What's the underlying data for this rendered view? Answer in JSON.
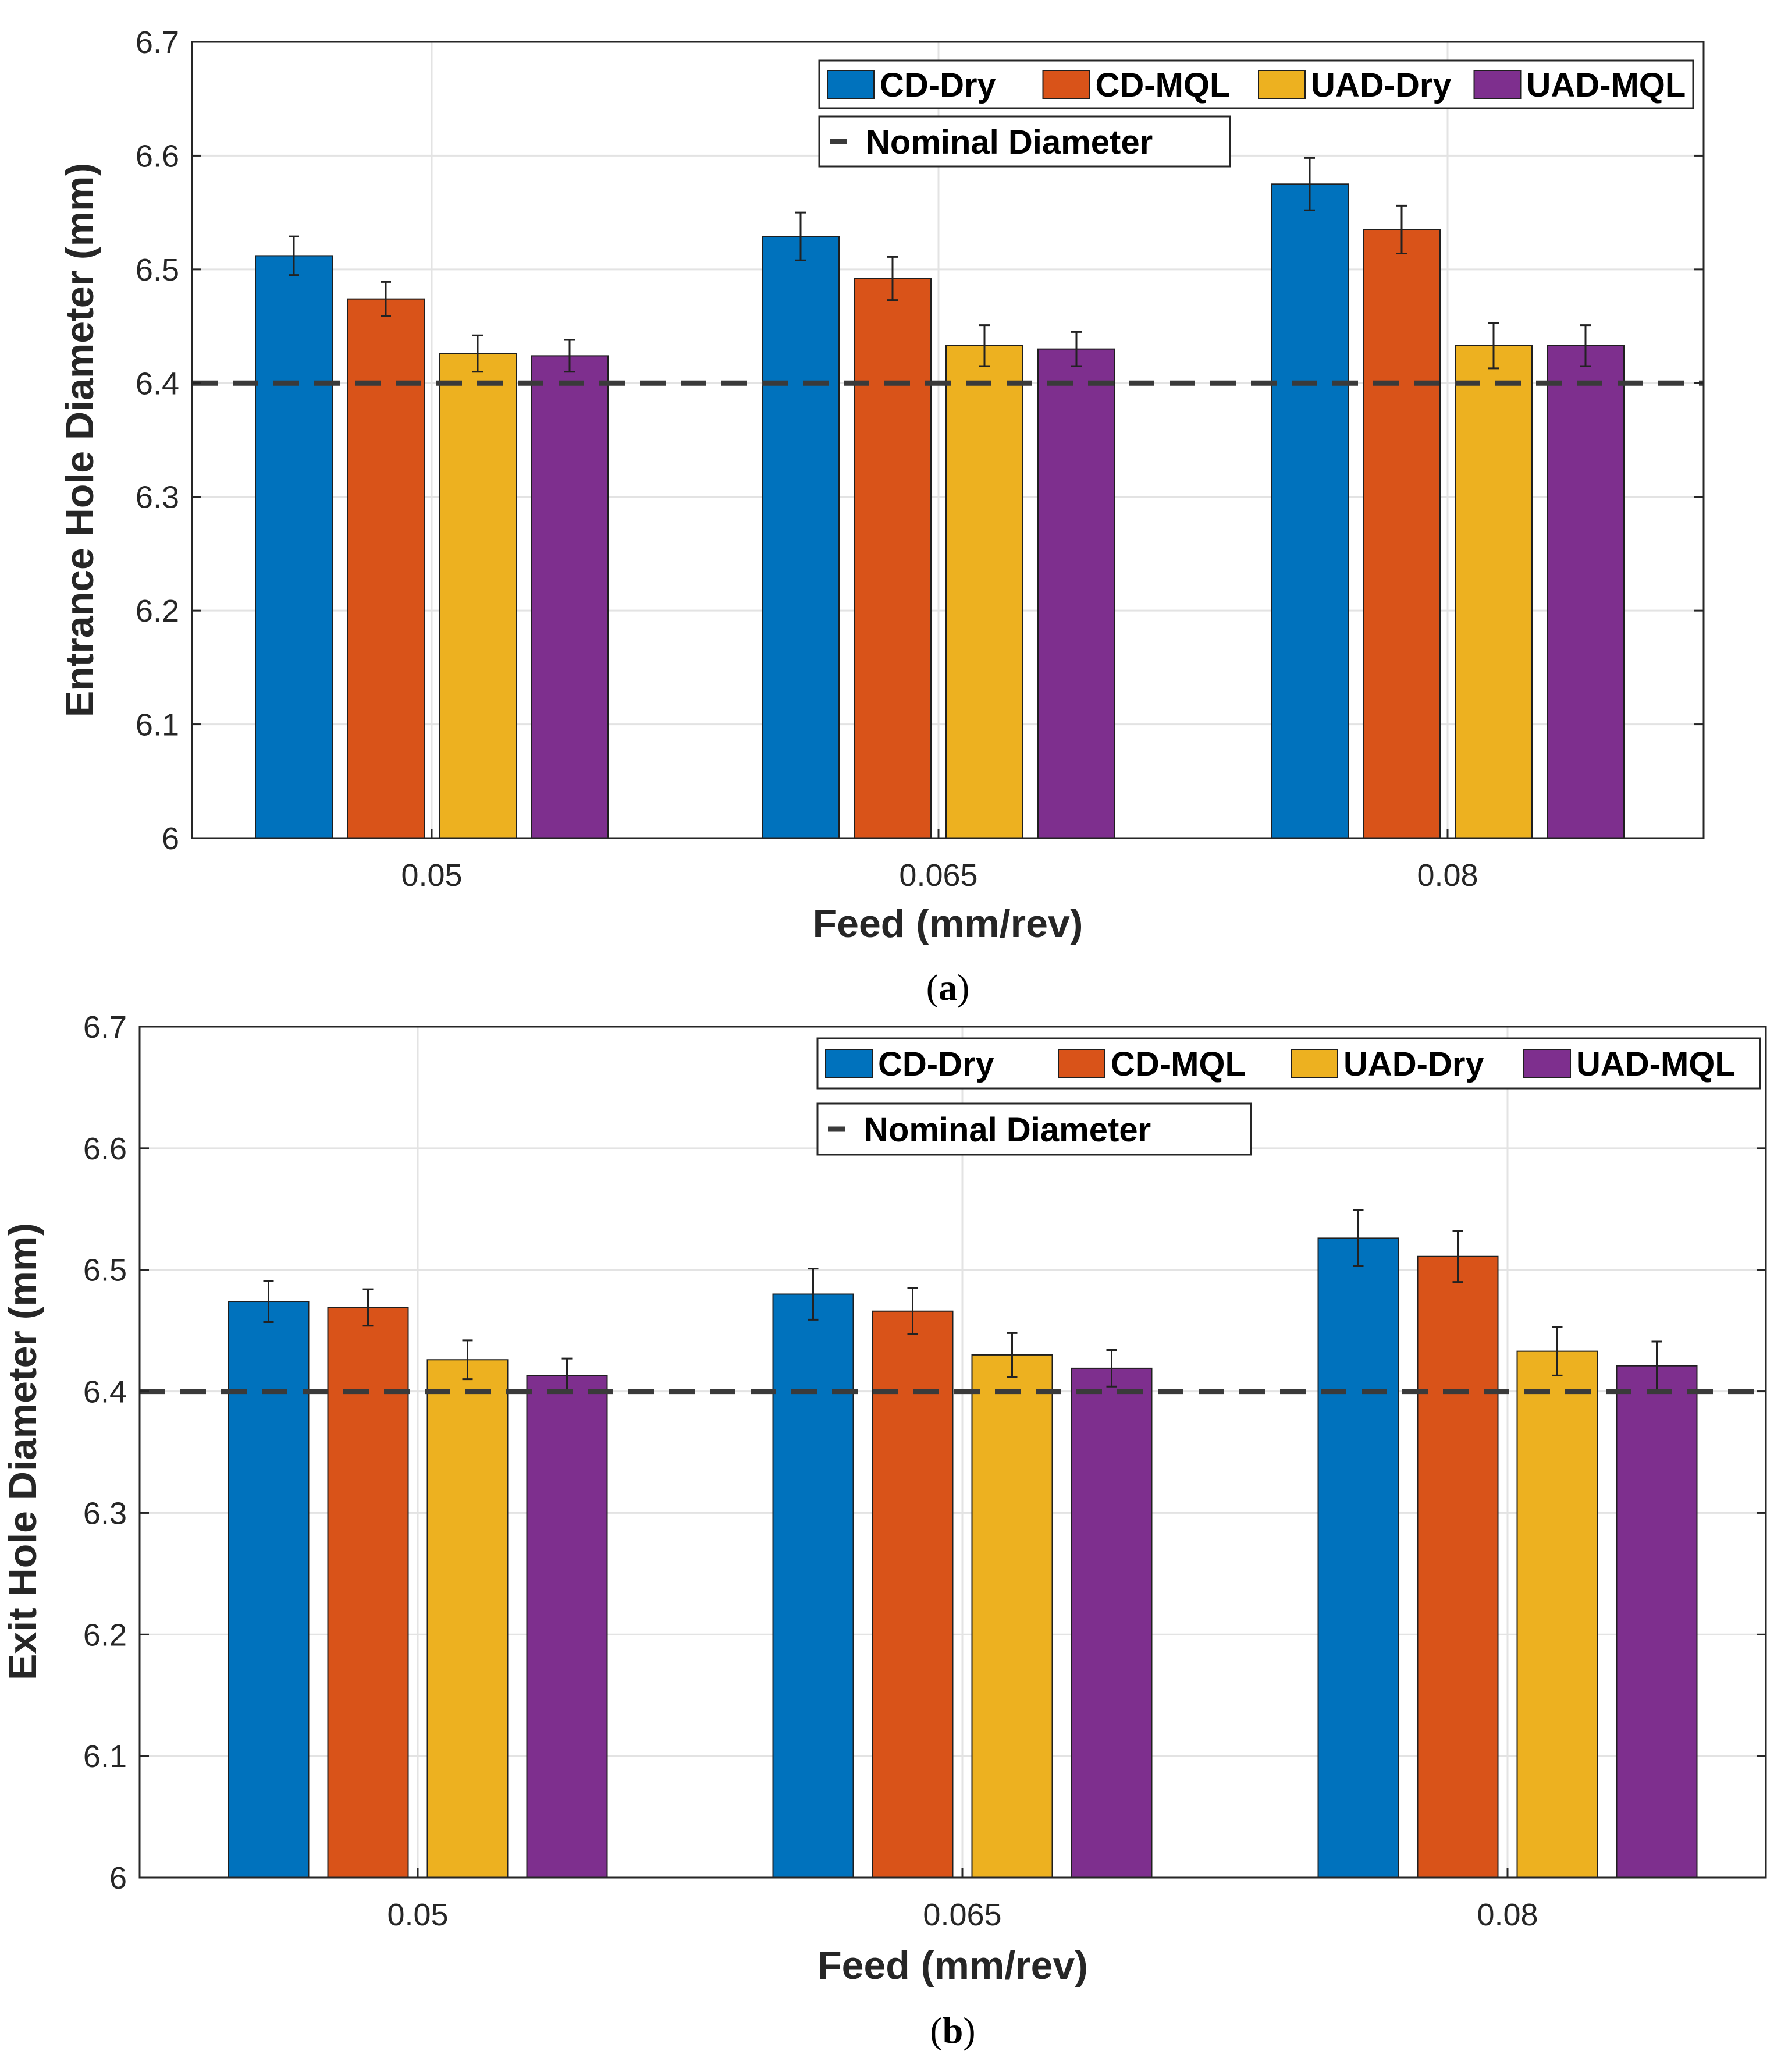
{
  "chart_data": [
    {
      "id": "a",
      "type": "bar",
      "caption_open": "(",
      "caption_letter": "a",
      "caption_close": ")",
      "xlabel": "Feed (mm/rev)",
      "ylabel": "Entrance Hole Diameter (mm)",
      "ylim": [
        6.0,
        6.7
      ],
      "yticks": [
        "6",
        "6.1",
        "6.2",
        "6.3",
        "6.4",
        "6.5",
        "6.6",
        "6.7"
      ],
      "categories": [
        "0.05",
        "0.065",
        "0.08"
      ],
      "grid": true,
      "nominal": {
        "name": "Nominal Diameter",
        "value": 6.4
      },
      "series": [
        {
          "name": "CD-Dry",
          "color": "#0072BD",
          "values": [
            6.512,
            6.529,
            6.575
          ],
          "errors": [
            0.017,
            0.021,
            0.023
          ]
        },
        {
          "name": "CD-MQL",
          "color": "#D95319",
          "values": [
            6.474,
            6.492,
            6.535
          ],
          "errors": [
            0.015,
            0.019,
            0.021
          ]
        },
        {
          "name": "UAD-Dry",
          "color": "#EDB120",
          "values": [
            6.426,
            6.433,
            6.433
          ],
          "errors": [
            0.016,
            0.018,
            0.02
          ]
        },
        {
          "name": "UAD-MQL",
          "color": "#7E2F8E",
          "values": [
            6.424,
            6.43,
            6.433
          ],
          "errors": [
            0.014,
            0.015,
            0.018
          ]
        }
      ]
    },
    {
      "id": "b",
      "type": "bar",
      "caption_open": "(",
      "caption_letter": "b",
      "caption_close": ")",
      "xlabel": "Feed (mm/rev)",
      "ylabel": "Exit Hole Diameter (mm)",
      "ylim": [
        6.0,
        6.7
      ],
      "yticks": [
        "6",
        "6.1",
        "6.2",
        "6.3",
        "6.4",
        "6.5",
        "6.6",
        "6.7"
      ],
      "categories": [
        "0.05",
        "0.065",
        "0.08"
      ],
      "grid": true,
      "nominal": {
        "name": "Nominal Diameter",
        "value": 6.4
      },
      "series": [
        {
          "name": "CD-Dry",
          "color": "#0072BD",
          "values": [
            6.474,
            6.48,
            6.526
          ],
          "errors": [
            0.017,
            0.021,
            0.023
          ]
        },
        {
          "name": "CD-MQL",
          "color": "#D95319",
          "values": [
            6.469,
            6.466,
            6.511
          ],
          "errors": [
            0.015,
            0.019,
            0.021
          ]
        },
        {
          "name": "UAD-Dry",
          "color": "#EDB120",
          "values": [
            6.426,
            6.43,
            6.433
          ],
          "errors": [
            0.016,
            0.018,
            0.02
          ]
        },
        {
          "name": "UAD-MQL",
          "color": "#7E2F8E",
          "values": [
            6.413,
            6.419,
            6.421
          ],
          "errors": [
            0.014,
            0.015,
            0.02
          ]
        }
      ]
    }
  ]
}
